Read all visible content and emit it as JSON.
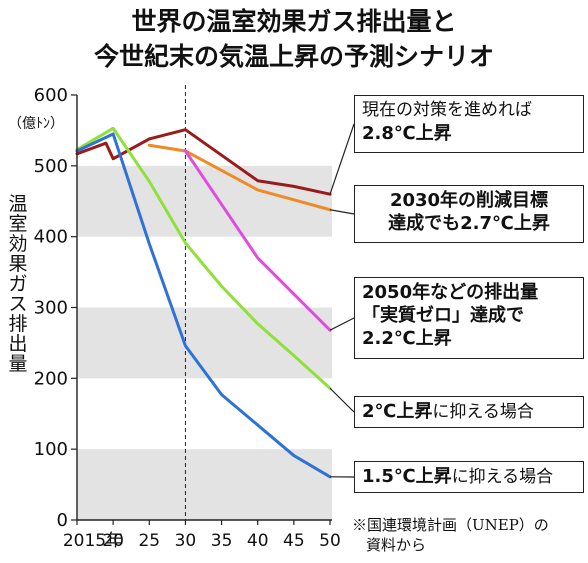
{
  "title": {
    "line1": "世界の温室効果ガス排出量と",
    "line2": "今世紀末の気温上昇の予測シナリオ"
  },
  "source_note": {
    "line1": "※国連環境計画（UNEP）の",
    "line2": "資料から"
  },
  "chart_data": {
    "type": "line",
    "title": "世界の温室効果ガス排出量と今世紀末の気温上昇の予測シナリオ",
    "ylabel": "温室効果ガス排出量",
    "yunit": "（億ﾄﾝ）",
    "ylim": [
      0,
      600
    ],
    "yticks": [
      0,
      100,
      200,
      300,
      400,
      500,
      600
    ],
    "xlim": [
      2015,
      2050
    ],
    "xtick_values": [
      2015,
      2020,
      2025,
      2030,
      2035,
      2040,
      2045,
      2050
    ],
    "xtick_labels": [
      "2015年",
      "20",
      "25",
      "30",
      "35",
      "40",
      "45",
      "50"
    ],
    "banded_background": true,
    "reference_line_x": 2030,
    "series": [
      {
        "name": "現在の対策を進めれば2.8℃上昇",
        "color": "#9b1b1b",
        "x": [
          2015,
          2019,
          2020,
          2025,
          2030,
          2040,
          2045,
          2050
        ],
        "y": [
          517,
          532,
          510,
          538,
          551,
          479,
          471,
          460
        ]
      },
      {
        "name": "2030年の削減目標達成でも2.7℃上昇",
        "color": "#f08a24",
        "x": [
          2025,
          2030,
          2040,
          2045,
          2050
        ],
        "y": [
          529,
          521,
          466,
          452,
          438
        ]
      },
      {
        "name": "2050年などの排出量「実質ゼロ」達成で2.2℃上昇",
        "color": "#e14ce0",
        "x": [
          2030,
          2040,
          2050
        ],
        "y": [
          521,
          370,
          268
        ]
      },
      {
        "name": "2℃上昇に抑える場合",
        "color": "#8ee03a",
        "x": [
          2015,
          2020,
          2025,
          2030,
          2035,
          2040,
          2045,
          2050
        ],
        "y": [
          523,
          553,
          478,
          391,
          330,
          277,
          232,
          186
        ]
      },
      {
        "name": "1.5℃上昇に抑える場合",
        "color": "#2f72d6",
        "x": [
          2015,
          2020,
          2025,
          2030,
          2035,
          2040,
          2045,
          2050
        ],
        "y": [
          521,
          545,
          390,
          246,
          177,
          134,
          91,
          61
        ]
      }
    ],
    "annotations": [
      {
        "series": 0,
        "line1_normal": "現在の対策を進めれば",
        "line2_bold": "2.8℃上昇"
      },
      {
        "series": 1,
        "line1_bold": "2030年の削減目標",
        "line2_bold": "達成でも2.7℃上昇"
      },
      {
        "series": 2,
        "line1_bold": "2050年などの排出量",
        "line2_bold": "「実質ゼロ」達成で",
        "line3_bold": "2.2℃上昇"
      },
      {
        "series": 3,
        "text_bold": "2℃上昇",
        "text_normal": "に抑える場合"
      },
      {
        "series": 4,
        "text_bold": "1.5℃上昇",
        "text_normal": "に抑える場合"
      }
    ]
  }
}
